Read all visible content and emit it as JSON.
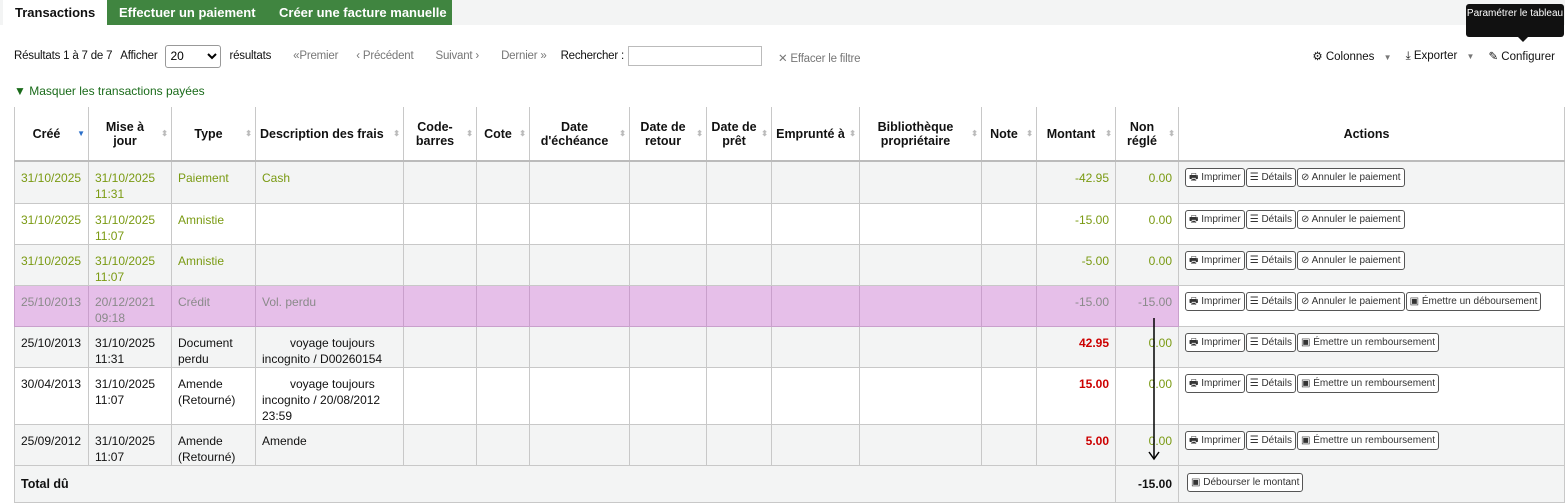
{
  "tabs": {
    "transactions": "Transactions",
    "pay": "Effectuer un paiement",
    "invoice": "Créer une facture manuelle"
  },
  "tooltip": "Paramétrer le tableau",
  "toolbar": {
    "results": "Résultats 1 à 7 de 7",
    "show": "Afficher",
    "page_size": "20",
    "results_suffix": "résultats",
    "first": "«Premier",
    "prev": "‹ Précédent",
    "next": "Suivant ›",
    "last": "Dernier »",
    "search_label": "Rechercher :",
    "search_value": "",
    "clear": "✕ Effacer le filtre",
    "columns": "Colonnes",
    "export": "Exporter",
    "configure": "Configurer"
  },
  "filter_link": "Masquer les transactions payées",
  "headers": [
    "Créé",
    "Mise à jour",
    "Type",
    "Description des frais",
    "Code-barres",
    "Cote",
    "Date d'échéance",
    "Date de retour",
    "Date de prêt",
    "Emprunté à",
    "Bibliothèque propriétaire",
    "Note",
    "Montant",
    "Non réglé",
    "Actions"
  ],
  "rows": [
    {
      "created": "31/10/2025",
      "updated": "31/10/2025 11:31",
      "type": "Paiement",
      "desc": "Cash",
      "amount": "-42.95",
      "outstanding": "0.00",
      "style": "credit",
      "actions": [
        "Imprimer",
        "Détails",
        "Annuler le paiement"
      ]
    },
    {
      "created": "31/10/2025",
      "updated": "31/10/2025 11:07",
      "type": "Amnistie",
      "desc": "",
      "amount": "-15.00",
      "outstanding": "0.00",
      "style": "credit",
      "actions": [
        "Imprimer",
        "Détails",
        "Annuler le paiement"
      ]
    },
    {
      "created": "31/10/2025",
      "updated": "31/10/2025 11:07",
      "type": "Amnistie",
      "desc": "",
      "amount": "-5.00",
      "outstanding": "0.00",
      "style": "credit",
      "actions": [
        "Imprimer",
        "Détails",
        "Annuler le paiement"
      ]
    },
    {
      "created": "25/10/2013",
      "updated": "20/12/2021 09:18",
      "type": "Crédit",
      "desc": "Vol. perdu",
      "amount": "-15.00",
      "outstanding": "-15.00",
      "style": "highlight",
      "actions": [
        "Imprimer",
        "Détails",
        "Annuler le paiement",
        "Émettre un déboursement"
      ]
    },
    {
      "created": "25/10/2013",
      "updated": "31/10/2025 11:31",
      "type": "Document perdu",
      "desc": "voyage toujours incognito / D00260154",
      "amount": "42.95",
      "outstanding": "0.00",
      "style": "debit",
      "actions": [
        "Imprimer",
        "Détails",
        "Émettre un remboursement"
      ]
    },
    {
      "created": "30/04/2013",
      "updated": "31/10/2025 11:07",
      "type": "Amende (Retourné)",
      "desc": "voyage toujours incognito / 20/08/2012 23:59",
      "amount": "15.00",
      "outstanding": "0.00",
      "style": "debit",
      "actions": [
        "Imprimer",
        "Détails",
        "Émettre un remboursement"
      ]
    },
    {
      "created": "25/09/2012",
      "updated": "31/10/2025 11:07",
      "type": "Amende (Retourné)",
      "desc": "Amende",
      "amount": "5.00",
      "outstanding": "0.00",
      "style": "debit",
      "actions": [
        "Imprimer",
        "Détails",
        "Émettre un remboursement"
      ]
    }
  ],
  "total": {
    "label": "Total dû",
    "value": "-15.00",
    "action": "Débourser le montant"
  },
  "colors": {
    "green_tab": "#408540",
    "credit_text": "#7a9a12",
    "debit_amount": "#cc0000",
    "highlight_row": "#e6bfe9"
  }
}
